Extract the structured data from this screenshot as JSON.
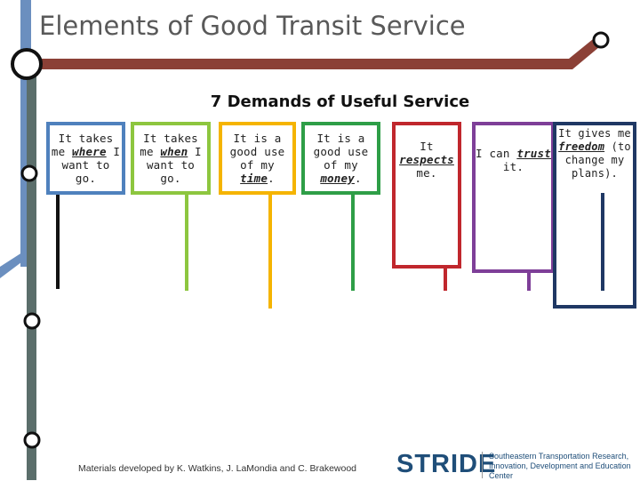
{
  "slide": {
    "title": "Elements of Good Transit Service",
    "subtitle": "7 Demands of Useful Service"
  },
  "colors": {
    "blue_line": "#6b8fbf",
    "brown_line": "#8b4036",
    "teal_line": "#5b6e6b",
    "box1": "#4f81bd",
    "box2": "#8dc63f",
    "box3": "#f5b400",
    "box4": "#2e9e47",
    "box5": "#c0272d",
    "box6": "#7e3f98",
    "box7": "#1f3864"
  },
  "demands": [
    {
      "pre": "It takes me ",
      "kw": "where",
      "post": " I want to go."
    },
    {
      "pre": "It takes me ",
      "kw": "when",
      "post": " I want to go."
    },
    {
      "pre": "It is a good use of my ",
      "kw": "time",
      "post": "."
    },
    {
      "pre": "It is a good use of my ",
      "kw": "money",
      "post": "."
    },
    {
      "pre": "It ",
      "kw": "respects",
      "post": " me."
    },
    {
      "pre": "I can ",
      "kw": "trust",
      "post": " it."
    },
    {
      "pre": "It gives me ",
      "kw": "freedom",
      "post": " (to change my plans)."
    }
  ],
  "footer": {
    "credit": "Materials developed by K. Watkins, J. LaMondia and C. Brakewood",
    "logo_text": "STRIDE",
    "org_name": "Southeastern Transportation Research, Innovation, Development and Education Center"
  }
}
